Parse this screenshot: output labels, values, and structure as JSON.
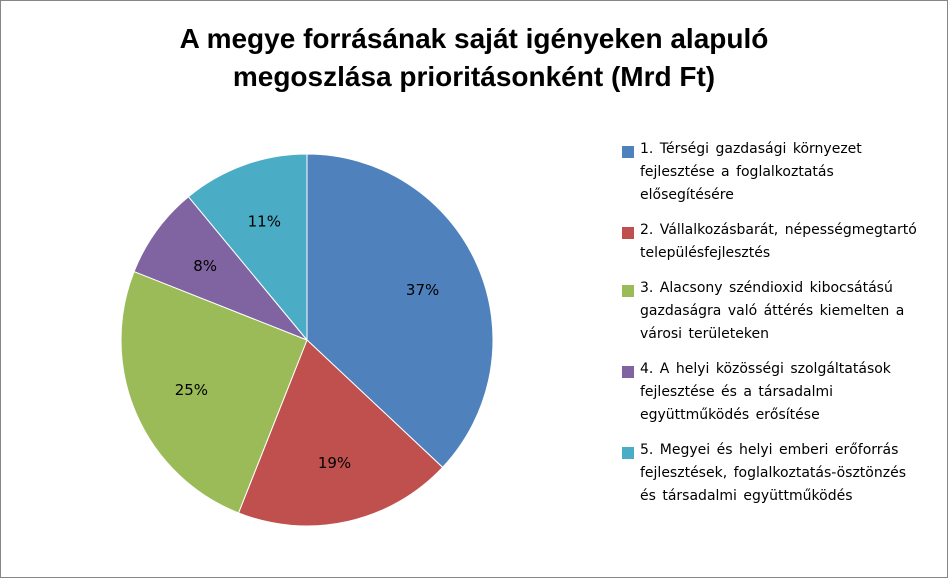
{
  "chart_data": {
    "type": "pie",
    "title": "A megye forrásának saját igényeken alapuló megoszlása prioritásonként (Mrd Ft)",
    "title_lines": [
      "A megye forrásának saját igényeken alapuló",
      "megoszlása prioritásonként (Mrd Ft)"
    ],
    "categories": [
      "1. Térségi gazdasági környezet fejlesztése a foglalkoztatás elősegítésére",
      "2. Vállalkozásbarát, népességmegtartó településfejlesztés",
      "3. Alacsony széndioxid kibocsátású gazdaságra való áttérés kiemelten a városi területeken",
      "4. A helyi közösségi szolgáltatások fejlesztése és a társadalmi együttműködés erősítése",
      "5. Megyei és helyi emberi erőforrás fejlesztések, foglalkoztatás-ösztönzés és társadalmi együttműködés"
    ],
    "values": [
      37,
      19,
      25,
      8,
      11
    ],
    "data_labels": [
      "37%",
      "19%",
      "25%",
      "8%",
      "11%"
    ],
    "colors": [
      "#4F81BD",
      "#C0504D",
      "#9BBB59",
      "#8064A2",
      "#4BACC6"
    ],
    "legend_position": "right",
    "start": "top, clockwise"
  }
}
